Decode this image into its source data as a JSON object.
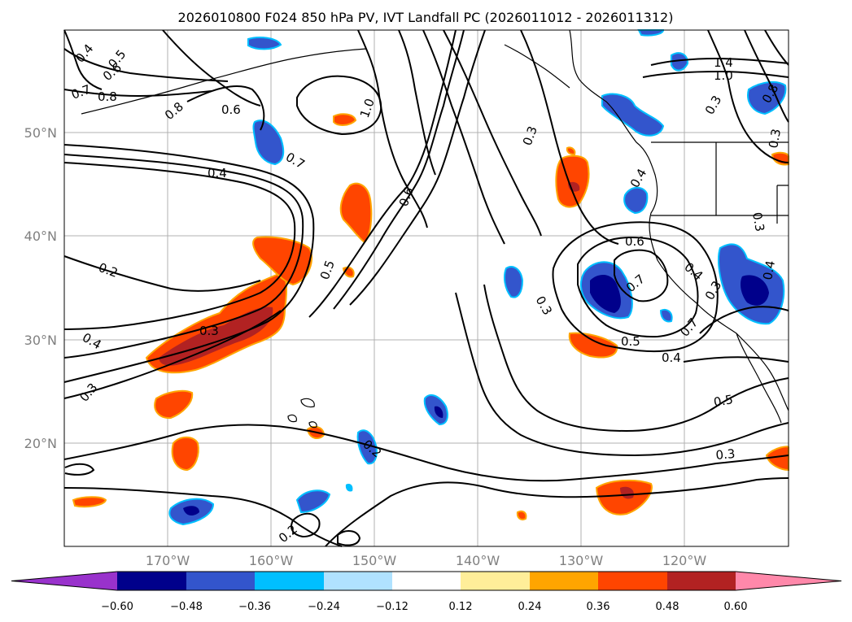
{
  "title": "2026010800 F024 850 hPa PV, IVT Landfall PC (2026011012 - 2026011312)",
  "latitude_labels": [
    "50°N",
    "40°N",
    "30°N",
    "20°N"
  ],
  "longitude_labels": [
    "170°W",
    "160°W",
    "150°W",
    "140°W",
    "130°W",
    "120°W"
  ],
  "colorbar": {
    "tick_labels": [
      "−0.60",
      "−0.48",
      "−0.36",
      "−0.24",
      "−0.12",
      "0.12",
      "0.24",
      "0.36",
      "0.48",
      "0.60"
    ],
    "colors": [
      "#9932CC",
      "#00008B",
      "#3355CC",
      "#00BFFF",
      "#B0E2FF",
      "#FFFFFF",
      "#FFEE99",
      "#FFA500",
      "#FF4500",
      "#B22222",
      "#FF88AA"
    ]
  },
  "contour_labels": [
    "0.4",
    "0.5",
    "0.6",
    "0.7",
    "0.8",
    "0.8",
    "0.6",
    "1.0",
    "0.3",
    "1.4",
    "1.0",
    "0.3",
    "0.8",
    "0.7",
    "0.4",
    "0.4",
    "0.6",
    "0.5",
    "0.2",
    "0.3",
    "0.4",
    "0.3",
    "0.6",
    "0.7",
    "0.4",
    "0.3",
    "0.5",
    "0.7",
    "0.4",
    "0.3",
    "0.5",
    "0.3",
    "0.2",
    "0.2",
    "0.3",
    "0.3",
    "0.4"
  ]
}
